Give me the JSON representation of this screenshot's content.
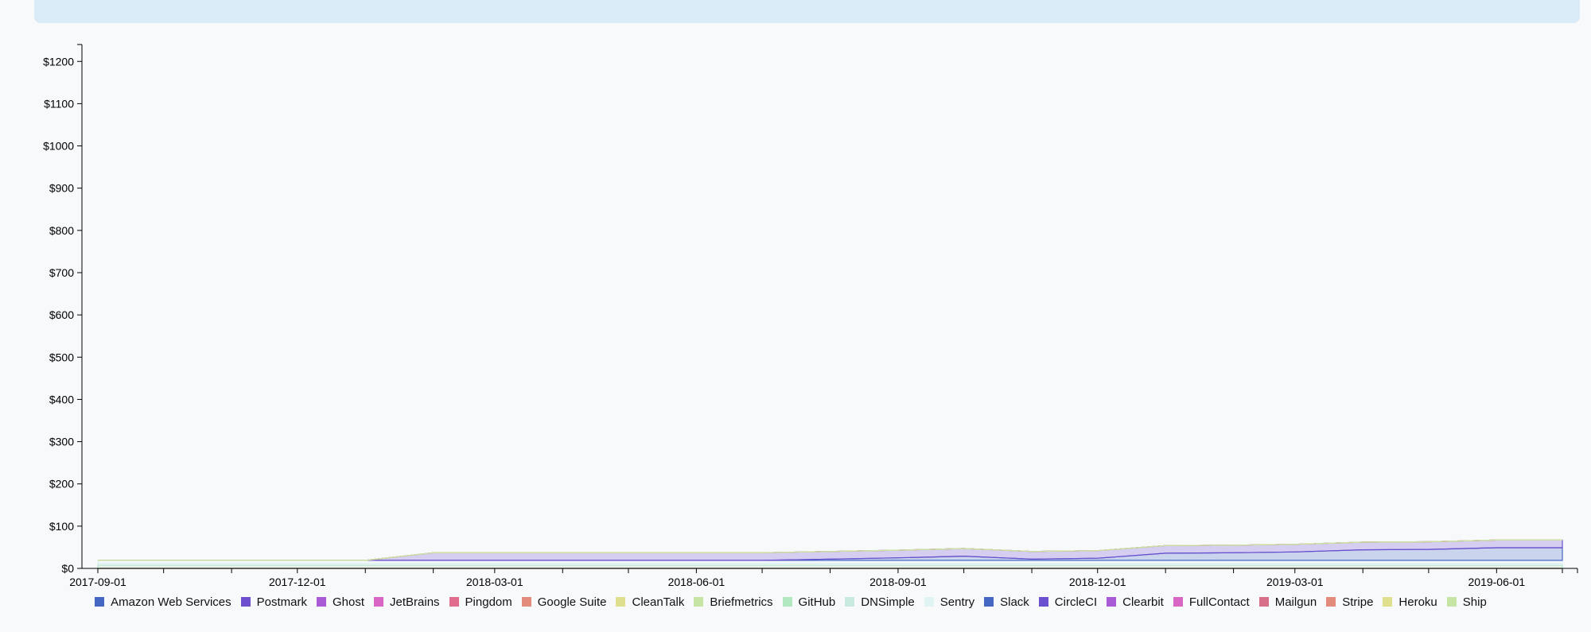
{
  "chart_data": {
    "type": "area",
    "stacked": true,
    "x": [
      "2017-09-01",
      "2017-10-01",
      "2017-11-01",
      "2017-12-01",
      "2018-01-01",
      "2018-02-01",
      "2018-03-01",
      "2018-04-01",
      "2018-05-01",
      "2018-06-01",
      "2018-07-01",
      "2018-08-01",
      "2018-09-01",
      "2018-10-01",
      "2018-11-01",
      "2018-12-01",
      "2019-01-01",
      "2019-02-01",
      "2019-03-01",
      "2019-04-01",
      "2019-05-01",
      "2019-06-01",
      "2019-07-01"
    ],
    "x_tick_labels": [
      "2017-09-01",
      "2017-12-01",
      "2018-03-01",
      "2018-06-01",
      "2018-09-01",
      "2018-12-01",
      "2019-03-01",
      "2019-06-01"
    ],
    "y_tick_labels": [
      "$0",
      "$100",
      "$200",
      "$300",
      "$400",
      "$500",
      "$600",
      "$700",
      "$800",
      "$900",
      "$1000",
      "$1100",
      "$1200"
    ],
    "ylim": [
      0,
      1240
    ],
    "grid": false,
    "legend_position": "bottom",
    "series": [
      {
        "name": "Amazon Web Services",
        "color": "#4467c4",
        "values": [
          0,
          0,
          0,
          0,
          0,
          0,
          0,
          0,
          0,
          0,
          0,
          0,
          0,
          0,
          0,
          0,
          0,
          0,
          0,
          0,
          0,
          0,
          0
        ]
      },
      {
        "name": "Postmark",
        "color": "#6b4fcf",
        "values": [
          0,
          0,
          0,
          0,
          0,
          0,
          0,
          0,
          0,
          0,
          0,
          0,
          0,
          0,
          0,
          0,
          0,
          0,
          0,
          0,
          0,
          0,
          0
        ]
      },
      {
        "name": "Ghost",
        "color": "#a95bd6",
        "values": [
          0,
          0,
          0,
          0,
          0,
          0,
          0,
          0,
          0,
          0,
          0,
          0,
          0,
          0,
          0,
          0,
          0,
          0,
          0,
          0,
          0,
          0,
          0
        ]
      },
      {
        "name": "JetBrains",
        "color": "#d966c4",
        "values": [
          0,
          0,
          0,
          0,
          0,
          0,
          0,
          0,
          0,
          0,
          0,
          0,
          0,
          0,
          0,
          0,
          0,
          0,
          0,
          0,
          0,
          0,
          0
        ]
      },
      {
        "name": "Pingdom",
        "color": "#e06c8e",
        "values": [
          0,
          0,
          0,
          0,
          0,
          0,
          0,
          0,
          0,
          0,
          0,
          0,
          0,
          0,
          0,
          0,
          0,
          0,
          0,
          0,
          0,
          0,
          0
        ]
      },
      {
        "name": "Google Suite",
        "color": "#e38c7c",
        "values": [
          0,
          0,
          0,
          0,
          0,
          0,
          0,
          0,
          0,
          0,
          0,
          0,
          0,
          0,
          0,
          0,
          0,
          0,
          0,
          0,
          0,
          0,
          0
        ]
      },
      {
        "name": "CleanTalk",
        "color": "#dfe08e",
        "values": [
          0,
          0,
          0,
          0,
          0,
          0,
          0,
          0,
          0,
          0,
          0,
          0,
          0,
          0,
          0,
          0,
          0,
          0,
          0,
          0,
          0,
          0,
          0
        ]
      },
      {
        "name": "Briefmetrics",
        "color": "#c6e5a4",
        "values": [
          0,
          0,
          0,
          0,
          0,
          0,
          0,
          0,
          0,
          0,
          0,
          0,
          0,
          0,
          0,
          0,
          0,
          0,
          0,
          0,
          0,
          0,
          0
        ]
      },
      {
        "name": "GitHub",
        "color": "#b2e8c0",
        "values": [
          7,
          7,
          7,
          7,
          7,
          7,
          7,
          7,
          7,
          7,
          7,
          7,
          7,
          7,
          7,
          7,
          7,
          7,
          7,
          7,
          7,
          7,
          7
        ]
      },
      {
        "name": "DNSimple",
        "color": "#c8eadf",
        "values": [
          5,
          5,
          5,
          5,
          5,
          5,
          5,
          5,
          5,
          5,
          5,
          5,
          5,
          5,
          5,
          5,
          5,
          5,
          5,
          5,
          5,
          5,
          5
        ]
      },
      {
        "name": "Sentry",
        "color": "#e0f3f3",
        "values": [
          7,
          7,
          7,
          7,
          7,
          7,
          7,
          7,
          7,
          7,
          7,
          7,
          7,
          7,
          7,
          7,
          7,
          7,
          7,
          7,
          7,
          7,
          7
        ]
      },
      {
        "name": "Slack",
        "color": "#4467c4",
        "values": [
          0,
          0,
          0,
          0,
          0,
          0,
          0,
          0,
          0,
          0,
          0,
          3,
          6,
          10,
          3,
          5,
          17,
          18,
          20,
          25,
          26,
          30,
          30
        ]
      },
      {
        "name": "CircleCI",
        "color": "#6b4fcf",
        "values": [
          0,
          0,
          0,
          0,
          0,
          18,
          18,
          18,
          18,
          18,
          18,
          18,
          18,
          18,
          18,
          18,
          18,
          18,
          18,
          18,
          18,
          18,
          18
        ]
      },
      {
        "name": "Clearbit",
        "color": "#a95bd6",
        "values": [
          0,
          0,
          0,
          0,
          0,
          0,
          0,
          0,
          0,
          0,
          0,
          0,
          0,
          0,
          0,
          0,
          0,
          0,
          0,
          0,
          0,
          0,
          0
        ]
      },
      {
        "name": "FullContact",
        "color": "#d966c4",
        "values": [
          0,
          0,
          0,
          0,
          0,
          0,
          0,
          0,
          0,
          0,
          0,
          0,
          0,
          0,
          0,
          0,
          0,
          0,
          0,
          0,
          0,
          0,
          0
        ]
      },
      {
        "name": "Mailgun",
        "color": "#d86f8a",
        "values": [
          0,
          0,
          0,
          0,
          0,
          0,
          0,
          0,
          0,
          0,
          0,
          0,
          0,
          0,
          0,
          0,
          0,
          0,
          0,
          0,
          0,
          0,
          0
        ]
      },
      {
        "name": "Stripe",
        "color": "#e38c7c",
        "values": [
          0,
          0,
          0,
          0,
          0,
          0,
          0,
          0,
          0,
          0,
          0,
          0,
          0,
          0,
          0,
          0,
          0,
          0,
          0,
          0,
          0,
          0,
          0
        ]
      },
      {
        "name": "Heroku",
        "color": "#dfe08e",
        "values": [
          0,
          0,
          0,
          0,
          0,
          0,
          0,
          0,
          0,
          0,
          0,
          0,
          0,
          0,
          0,
          0,
          0,
          0,
          0,
          0,
          0,
          0,
          0
        ]
      },
      {
        "name": "Ship",
        "color": "#c6e5a4",
        "values": [
          0,
          0,
          0,
          0,
          0,
          0,
          0,
          0,
          0,
          0,
          0,
          0,
          0,
          0,
          0,
          0,
          0,
          0,
          0,
          0,
          0,
          0,
          0
        ]
      }
    ]
  }
}
